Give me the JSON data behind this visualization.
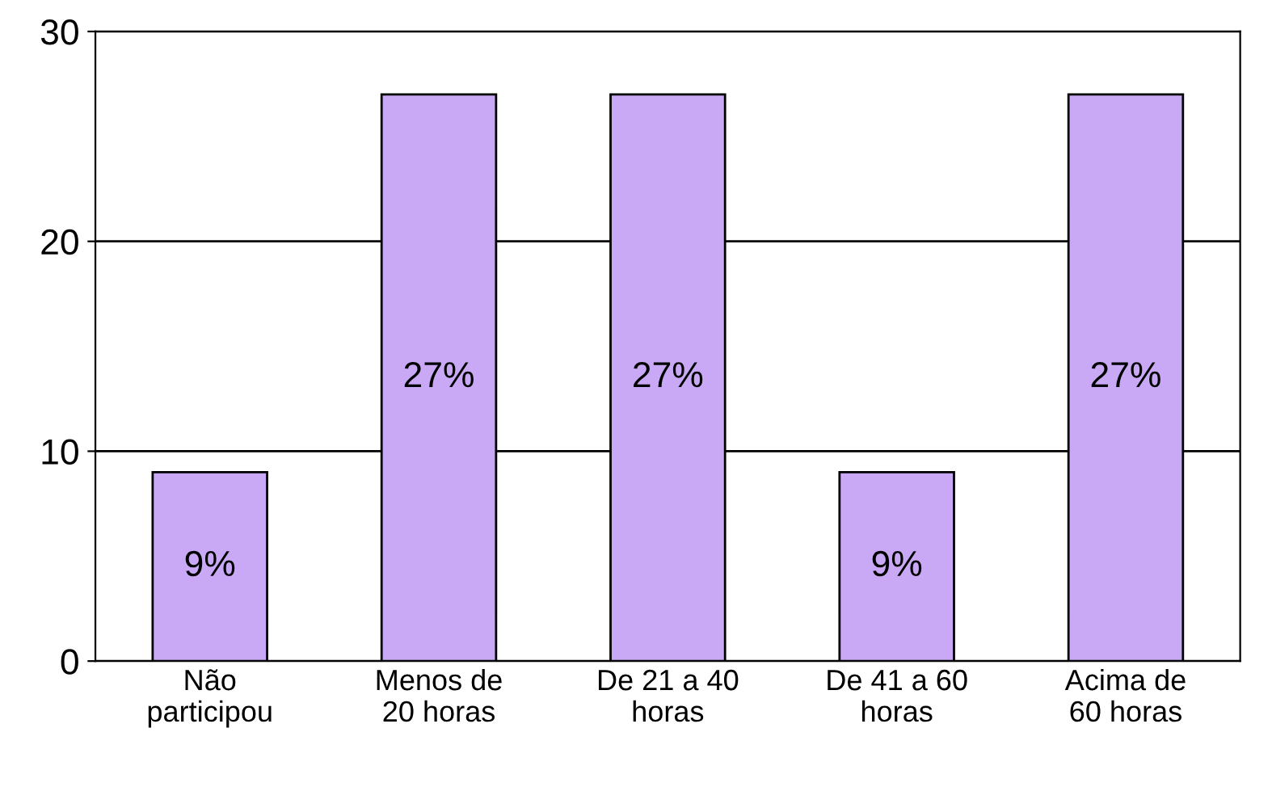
{
  "chart_data": {
    "type": "bar",
    "categories": [
      "Não\nparticipou",
      "Menos de\n20 horas",
      "De 21 a 40\nhoras",
      "De 41 a 60\nhoras",
      "Acima de\n60 horas"
    ],
    "values": [
      9,
      27,
      27,
      9,
      27
    ],
    "value_labels": [
      "9%",
      "27%",
      "27%",
      "9%",
      "27%"
    ],
    "color": "#c9a8f5",
    "ylim": [
      0,
      30
    ],
    "yticks": [
      0,
      10,
      20,
      30
    ],
    "grid": "y"
  }
}
